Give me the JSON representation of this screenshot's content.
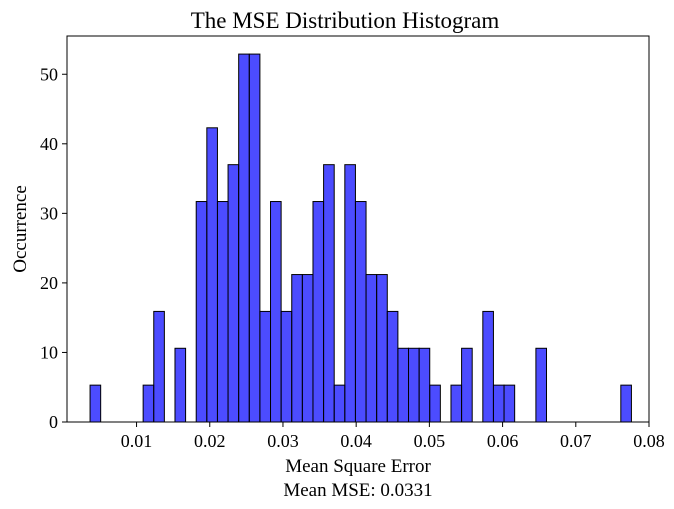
{
  "chart_data": {
    "type": "bar",
    "title": "The MSE Distribution Histogram",
    "xlabel": "Mean Square Error",
    "xlabel_line2": "Mean MSE: 0.0331",
    "ylabel": "Occurrence",
    "xlim": [
      0.0005,
      0.08
    ],
    "ylim": [
      0,
      55.5
    ],
    "xticks": [
      0.01,
      0.02,
      0.03,
      0.04,
      0.05,
      0.06,
      0.07,
      0.08
    ],
    "xtick_labels": [
      "0.01",
      "0.02",
      "0.03",
      "0.04",
      "0.05",
      "0.06",
      "0.07",
      "0.08"
    ],
    "yticks": [
      0,
      10,
      20,
      30,
      40,
      50
    ],
    "ytick_labels": [
      "0",
      "10",
      "20",
      "30",
      "40",
      "50"
    ],
    "bin_start": 0.00365,
    "bin_width": 0.00145,
    "values": [
      5.3,
      0,
      0,
      0,
      0,
      5.3,
      15.9,
      0,
      10.6,
      0,
      31.7,
      42.3,
      31.7,
      37.0,
      52.9,
      52.9,
      15.9,
      31.7,
      15.9,
      21.2,
      21.2,
      31.7,
      37.0,
      5.3,
      37.0,
      31.7,
      21.2,
      21.2,
      15.9,
      10.6,
      10.6,
      10.6,
      5.3,
      0,
      5.3,
      10.6,
      0,
      15.9,
      5.3,
      5.3,
      0,
      0,
      10.6,
      0,
      0,
      0,
      0,
      0,
      0,
      0,
      5.3
    ],
    "bar_color": "#0000ff",
    "bar_opacity": 0.7,
    "edge_color": "#000000",
    "grid": false
  }
}
